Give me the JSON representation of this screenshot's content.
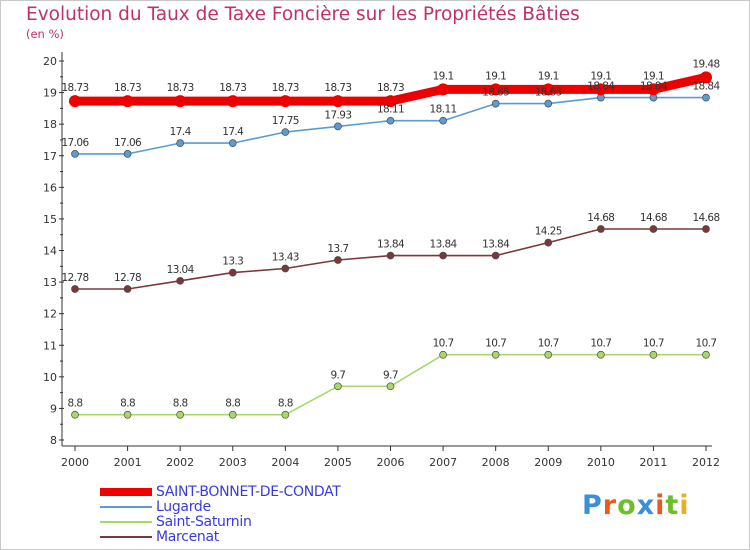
{
  "title": "Evolution du Taux de Taxe Foncière sur les Propriétés Bâties",
  "subtitle": "(en %)",
  "logo": {
    "text": "Proxiti",
    "letter_colors": [
      "#3a8fd9",
      "#e85a1e",
      "#6cbf2a",
      "#3a8fd9",
      "#e85a1e",
      "#6cbf2a",
      "#e8b01e"
    ]
  },
  "chart_data": {
    "type": "line",
    "title": "Evolution du Taux de Taxe Foncière sur les Propriétés Bâties",
    "ylabel": "(en %)",
    "xlabel": "",
    "x": [
      "2000",
      "2001",
      "2002",
      "2003",
      "2004",
      "2005",
      "2006",
      "2007",
      "2008",
      "2009",
      "2010",
      "2011",
      "2012"
    ],
    "ylim": [
      8,
      20
    ],
    "yticks": [
      "8",
      "9",
      "10",
      "11",
      "12",
      "13",
      "14",
      "15",
      "16",
      "17",
      "18",
      "19",
      "20"
    ],
    "grid": false,
    "legend_position": "bottom-left",
    "series": [
      {
        "name": "SAINT-BONNET-DE-CONDAT",
        "color": "#ee0000",
        "values": [
          18.73,
          18.73,
          18.73,
          18.73,
          18.73,
          18.73,
          18.73,
          19.1,
          19.1,
          19.1,
          19.1,
          19.1,
          19.48
        ],
        "labels": [
          "18.73",
          "18.73",
          "18.73",
          "18.73",
          "18.73",
          "18.73",
          "18.73",
          "19.1",
          "19.1",
          "19.1",
          "19.1",
          "19.1",
          "19.48"
        ]
      },
      {
        "name": "Lugarde",
        "color": "#5b9bd0",
        "values": [
          17.06,
          17.06,
          17.4,
          17.4,
          17.75,
          17.93,
          18.11,
          18.11,
          18.65,
          18.65,
          18.84,
          18.84,
          18.84
        ],
        "labels": [
          "17.06",
          "17.06",
          "17.4",
          "17.4",
          "17.75",
          "17.93",
          "18.11",
          "18.11",
          "18.65",
          "18.65",
          "18.84",
          "18.84",
          "18.84"
        ]
      },
      {
        "name": "Saint-Saturnin",
        "color": "#a6d96a",
        "values": [
          8.8,
          8.8,
          8.8,
          8.8,
          8.8,
          9.7,
          9.7,
          10.7,
          10.7,
          10.7,
          10.7,
          10.7,
          10.7
        ],
        "labels": [
          "8.8",
          "8.8",
          "8.8",
          "8.8",
          "8.8",
          "9.7",
          "9.7",
          "10.7",
          "10.7",
          "10.7",
          "10.7",
          "10.7",
          "10.7"
        ]
      },
      {
        "name": "Marcenat",
        "color": "#7a3838",
        "values": [
          12.78,
          12.78,
          13.04,
          13.3,
          13.43,
          13.7,
          13.84,
          13.84,
          13.84,
          14.25,
          14.68,
          14.68,
          14.68
        ],
        "labels": [
          "12.78",
          "12.78",
          "13.04",
          "13.3",
          "13.43",
          "13.7",
          "13.84",
          "13.84",
          "13.84",
          "14.25",
          "14.68",
          "14.68",
          "14.68"
        ]
      }
    ]
  }
}
